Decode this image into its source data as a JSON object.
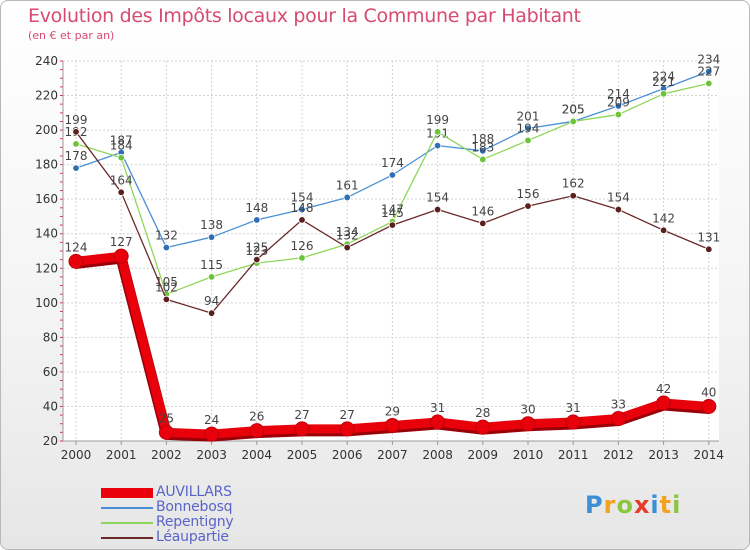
{
  "header": {
    "title": "Evolution des Impôts locaux pour la Commune par Habitant",
    "subtitle": "(en € et par an)"
  },
  "logo": {
    "letters": [
      "P",
      "r",
      "o",
      "x",
      "i",
      "t",
      "i"
    ],
    "colors": [
      "#3b8fd4",
      "#f2a21c",
      "#8cc63f",
      "#e8392b",
      "#3b8fd4",
      "#f2a21c",
      "#8cc63f"
    ]
  },
  "chart_data": {
    "type": "line",
    "title": "Evolution des Impôts locaux pour la Commune par Habitant",
    "subtitle": "(en € et par an)",
    "xlabel": "",
    "ylabel": "",
    "categories": [
      "2000",
      "2001",
      "2002",
      "2003",
      "2004",
      "2005",
      "2006",
      "2007",
      "2008",
      "2009",
      "2010",
      "2011",
      "2012",
      "2013",
      "2014"
    ],
    "ylim": [
      20,
      240
    ],
    "yticks": [
      20,
      40,
      60,
      80,
      100,
      120,
      140,
      160,
      180,
      200,
      220,
      240
    ],
    "grid": true,
    "legend_position": "bottom-left",
    "series": [
      {
        "name": "Bonnebosq",
        "color": "#4a8fd6",
        "dot": "#2f6fb6",
        "values": [
          178,
          187,
          132,
          138,
          148,
          154,
          161,
          174,
          191,
          188,
          201,
          205,
          214,
          224,
          234
        ],
        "labels": [
          "178",
          "187",
          "132",
          "138",
          "148",
          "154",
          "161",
          "174",
          "191",
          "188",
          "201",
          "205",
          "214",
          "224",
          "234"
        ]
      },
      {
        "name": "Repentigny",
        "color": "#8fd65a",
        "dot": "#6cc43a",
        "values": [
          192,
          184,
          105,
          115,
          123,
          126,
          134,
          147,
          199,
          183,
          194,
          205,
          209,
          221,
          227
        ],
        "labels": [
          "192",
          "184",
          "105",
          "115",
          "123",
          "126",
          "134",
          "147",
          "199",
          "183",
          "194",
          "205",
          "209",
          "221",
          "227"
        ]
      },
      {
        "name": "Léaupartie",
        "color": "#6b2a2a",
        "dot": "#5a1e1e",
        "values": [
          199,
          164,
          102,
          94,
          125,
          148,
          132,
          145,
          154,
          146,
          156,
          162,
          154,
          142,
          131
        ],
        "labels": [
          "199",
          "164",
          "102",
          "94",
          "125",
          "148",
          "132",
          "145",
          "154",
          "146",
          "156",
          "162",
          "154",
          "142",
          "131"
        ]
      },
      {
        "name": "AUVILLARS",
        "color": "#e8000b",
        "dot": "#e8000b",
        "bold": true,
        "values": [
          124,
          127,
          25,
          24,
          26,
          27,
          27,
          29,
          31,
          28,
          30,
          31,
          33,
          42,
          40
        ],
        "labels": [
          "124",
          "127",
          "25",
          "24",
          "26",
          "27",
          "27",
          "29",
          "31",
          "28",
          "30",
          "31",
          "33",
          "42",
          "40"
        ]
      }
    ],
    "legend_order": [
      "AUVILLARS",
      "Bonnebosq",
      "Repentigny",
      "Léaupartie"
    ]
  }
}
